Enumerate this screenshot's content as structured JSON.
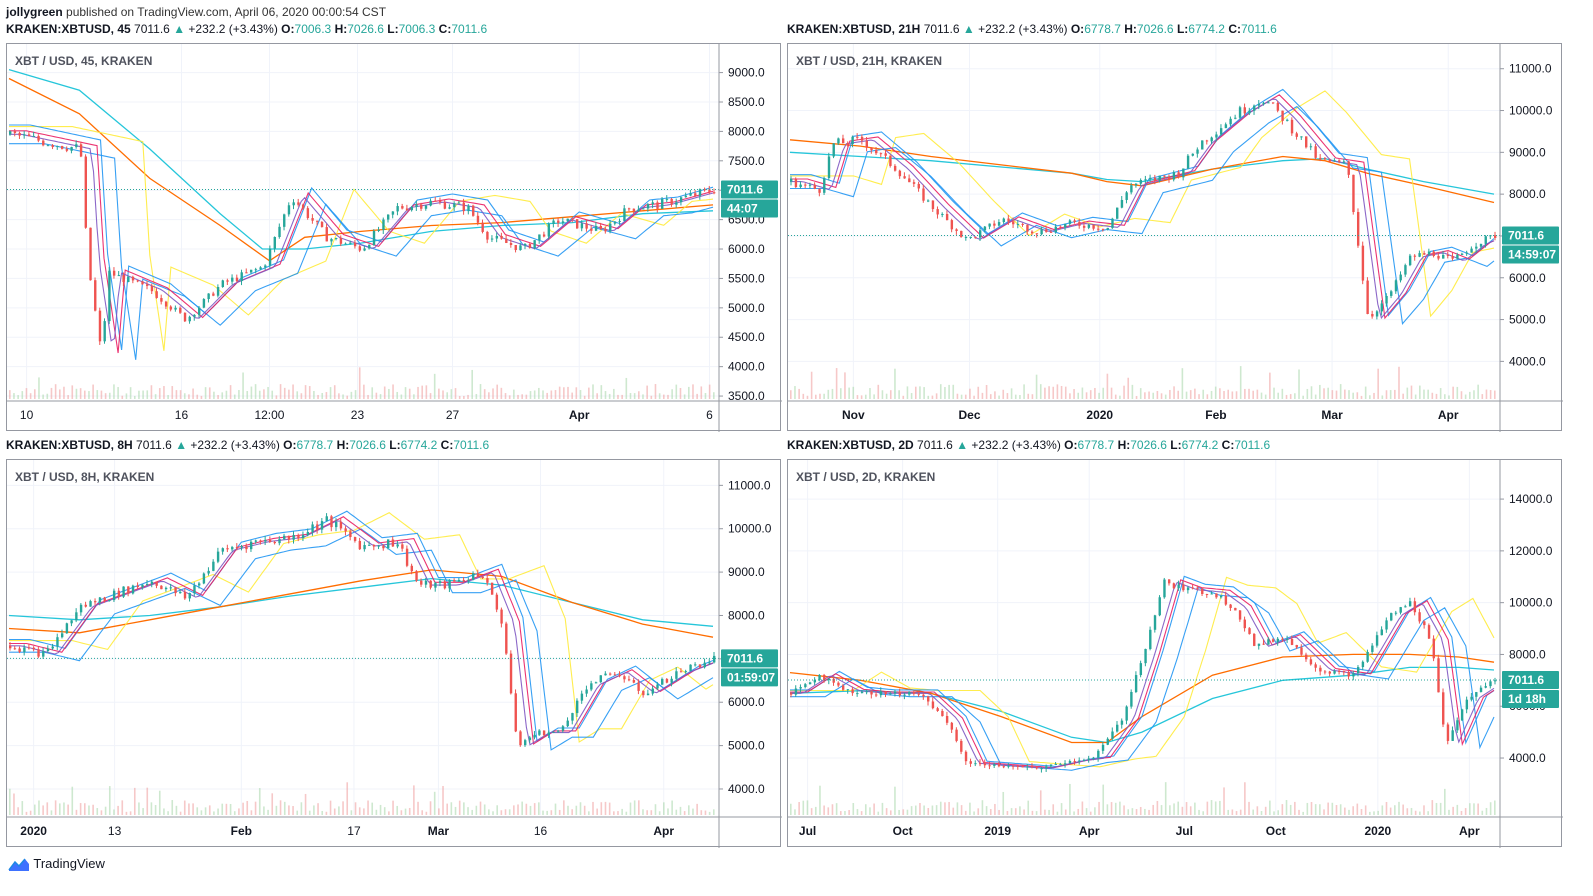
{
  "publisher": {
    "user": "jollygreen",
    "text": "published on TradingView.com, April 06, 2020 00:00:54 CST"
  },
  "footer": {
    "brand": "TradingView"
  },
  "colors": {
    "up": "#26a69a",
    "down": "#ef5350",
    "ema_blue": "#2196f3",
    "ema_purple": "#7e57c2",
    "ema_pink": "#e91e63",
    "ema_yellow": "#ffeb3b",
    "ma_orange": "#ff6d00",
    "ma_cyan": "#26c6da"
  },
  "panels": [
    {
      "header": {
        "symbol": "KRAKEN:XBTUSD, 45",
        "price": "7011.6",
        "change": "+232.2 (+3.43%)",
        "o": "7006.3",
        "h": "7026.6",
        "l": "7006.3",
        "c": "7011.6"
      },
      "label": "XBT / USD, 45, KRAKEN",
      "price_tag": "7011.6",
      "countdown": "44:07"
    },
    {
      "header": {
        "symbol": "KRAKEN:XBTUSD, 21H",
        "price": "7011.6",
        "change": "+232.2 (+3.43%)",
        "o": "6778.7",
        "h": "7026.6",
        "l": "6774.2",
        "c": "7011.6"
      },
      "label": "XBT / USD, 21H, KRAKEN",
      "price_tag": "7011.6",
      "countdown": "14:59:07"
    },
    {
      "header": {
        "symbol": "KRAKEN:XBTUSD, 8H",
        "price": "7011.6",
        "change": "+232.2 (+3.43%)",
        "o": "6778.7",
        "h": "7026.6",
        "l": "6774.2",
        "c": "7011.6"
      },
      "label": "XBT / USD, 8H, KRAKEN",
      "price_tag": "7011.6",
      "countdown": "01:59:07"
    },
    {
      "header": {
        "symbol": "KRAKEN:XBTUSD, 2D",
        "price": "7011.6",
        "change": "+232.2 (+3.43%)",
        "o": "6778.7",
        "h": "7026.6",
        "l": "6774.2",
        "c": "7011.6"
      },
      "label": "XBT / USD, 2D, KRAKEN",
      "price_tag": "7011.6",
      "countdown": "1d 18h"
    }
  ],
  "chart_data": [
    {
      "type": "candlestick",
      "ylim": [
        3450,
        9350
      ],
      "yticks": [
        "3500.0",
        "4000.0",
        "4500.0",
        "5000.0",
        "5500.0",
        "6000.0",
        "6500.0",
        "7000.0",
        "7500.0",
        "8000.0",
        "8500.0",
        "9000.0"
      ],
      "ytick_values": [
        3500,
        4000,
        4500,
        5000,
        5500,
        6000,
        6500,
        7000,
        7500,
        8000,
        8500,
        9000
      ],
      "xticks": [
        "10",
        "16",
        "12:00",
        "23",
        "27",
        "Apr",
        "6"
      ],
      "xtick_pos": [
        0.025,
        0.245,
        0.37,
        0.495,
        0.63,
        0.81,
        0.995
      ],
      "price_line": 7011.6,
      "close_path": [
        [
          0,
          7950
        ],
        [
          0.1,
          7700
        ],
        [
          0.11,
          5800
        ],
        [
          0.13,
          4200
        ],
        [
          0.14,
          5600
        ],
        [
          0.2,
          5300
        ],
        [
          0.25,
          4800
        ],
        [
          0.3,
          5400
        ],
        [
          0.36,
          5700
        ],
        [
          0.4,
          6900
        ],
        [
          0.45,
          6200
        ],
        [
          0.5,
          6000
        ],
        [
          0.55,
          6700
        ],
        [
          0.6,
          6800
        ],
        [
          0.65,
          6700
        ],
        [
          0.68,
          6200
        ],
        [
          0.73,
          6000
        ],
        [
          0.78,
          6500
        ],
        [
          0.84,
          6300
        ],
        [
          0.88,
          6700
        ],
        [
          0.92,
          6750
        ],
        [
          1,
          7011.6
        ]
      ],
      "ma_orange": [
        [
          0,
          8900
        ],
        [
          0.1,
          8300
        ],
        [
          0.2,
          7200
        ],
        [
          0.3,
          6400
        ],
        [
          0.37,
          5800
        ],
        [
          0.42,
          6200
        ],
        [
          0.5,
          6300
        ],
        [
          0.6,
          6400
        ],
        [
          0.7,
          6450
        ],
        [
          0.8,
          6550
        ],
        [
          0.9,
          6650
        ],
        [
          1,
          6750
        ]
      ],
      "ma_cyan": [
        [
          0,
          9050
        ],
        [
          0.1,
          8700
        ],
        [
          0.2,
          7700
        ],
        [
          0.3,
          6600
        ],
        [
          0.36,
          6000
        ],
        [
          0.42,
          6000
        ],
        [
          0.5,
          6100
        ],
        [
          0.6,
          6300
        ],
        [
          0.7,
          6400
        ],
        [
          0.8,
          6450
        ],
        [
          0.9,
          6600
        ],
        [
          1,
          6650
        ]
      ]
    },
    {
      "type": "candlestick",
      "ylim": [
        3100,
        11400
      ],
      "yticks": [
        "4000.0",
        "5000.0",
        "6000.0",
        "7000.0",
        "8000.0",
        "9000.0",
        "10000.0",
        "11000.0"
      ],
      "ytick_values": [
        4000,
        5000,
        6000,
        7000,
        8000,
        9000,
        10000,
        11000
      ],
      "xticks": [
        "Nov",
        "Dec",
        "2020",
        "Feb",
        "Mar",
        "Apr"
      ],
      "xtick_pos": [
        0.09,
        0.255,
        0.44,
        0.605,
        0.77,
        0.935
      ],
      "price_line": 7011.6,
      "close_path": [
        [
          0,
          8300
        ],
        [
          0.04,
          8100
        ],
        [
          0.06,
          9200
        ],
        [
          0.1,
          9300
        ],
        [
          0.15,
          8600
        ],
        [
          0.2,
          7700
        ],
        [
          0.25,
          6900
        ],
        [
          0.3,
          7400
        ],
        [
          0.35,
          7100
        ],
        [
          0.4,
          7300
        ],
        [
          0.45,
          7200
        ],
        [
          0.48,
          8200
        ],
        [
          0.55,
          8500
        ],
        [
          0.58,
          9200
        ],
        [
          0.63,
          9900
        ],
        [
          0.67,
          10300
        ],
        [
          0.7,
          9800
        ],
        [
          0.75,
          8800
        ],
        [
          0.79,
          8700
        ],
        [
          0.82,
          5000
        ],
        [
          0.85,
          5600
        ],
        [
          0.88,
          6500
        ],
        [
          0.91,
          6600
        ],
        [
          0.94,
          6400
        ],
        [
          0.97,
          6800
        ],
        [
          1,
          7011.6
        ]
      ],
      "ma_orange": [
        [
          0,
          9300
        ],
        [
          0.1,
          9150
        ],
        [
          0.2,
          8900
        ],
        [
          0.3,
          8700
        ],
        [
          0.4,
          8500
        ],
        [
          0.45,
          8300
        ],
        [
          0.5,
          8200
        ],
        [
          0.6,
          8600
        ],
        [
          0.7,
          8900
        ],
        [
          0.76,
          8800
        ],
        [
          0.82,
          8500
        ],
        [
          0.9,
          8200
        ],
        [
          1,
          7800
        ]
      ],
      "ma_cyan": [
        [
          0,
          9000
        ],
        [
          0.1,
          8900
        ],
        [
          0.2,
          8800
        ],
        [
          0.3,
          8650
        ],
        [
          0.4,
          8500
        ],
        [
          0.45,
          8350
        ],
        [
          0.5,
          8300
        ],
        [
          0.6,
          8600
        ],
        [
          0.7,
          8800
        ],
        [
          0.76,
          8850
        ],
        [
          0.82,
          8600
        ],
        [
          0.9,
          8300
        ],
        [
          1,
          8000
        ]
      ]
    },
    {
      "type": "candlestick",
      "ylim": [
        3400,
        11400
      ],
      "yticks": [
        "4000.0",
        "5000.0",
        "6000.0",
        "7000.0",
        "8000.0",
        "9000.0",
        "10000.0",
        "11000.0"
      ],
      "ytick_values": [
        4000,
        5000,
        6000,
        7000,
        8000,
        9000,
        10000,
        11000
      ],
      "xticks": [
        "2020",
        "13",
        "Feb",
        "17",
        "Mar",
        "16",
        "Apr"
      ],
      "xtick_pos": [
        0.035,
        0.15,
        0.33,
        0.49,
        0.61,
        0.755,
        0.93
      ],
      "price_line": 7011.6,
      "close_path": [
        [
          0,
          7300
        ],
        [
          0.05,
          7100
        ],
        [
          0.1,
          8200
        ],
        [
          0.15,
          8500
        ],
        [
          0.2,
          8800
        ],
        [
          0.25,
          8400
        ],
        [
          0.3,
          9500
        ],
        [
          0.35,
          9700
        ],
        [
          0.4,
          9800
        ],
        [
          0.45,
          10200
        ],
        [
          0.5,
          9600
        ],
        [
          0.55,
          9700
        ],
        [
          0.58,
          8700
        ],
        [
          0.62,
          8700
        ],
        [
          0.67,
          9000
        ],
        [
          0.7,
          7800
        ],
        [
          0.72,
          5000
        ],
        [
          0.75,
          5300
        ],
        [
          0.78,
          5300
        ],
        [
          0.82,
          6400
        ],
        [
          0.86,
          6700
        ],
        [
          0.9,
          6200
        ],
        [
          0.95,
          6700
        ],
        [
          1,
          7011.6
        ]
      ],
      "ma_orange": [
        [
          0,
          7700
        ],
        [
          0.1,
          7600
        ],
        [
          0.2,
          7900
        ],
        [
          0.3,
          8200
        ],
        [
          0.4,
          8500
        ],
        [
          0.5,
          8800
        ],
        [
          0.6,
          9050
        ],
        [
          0.7,
          8900
        ],
        [
          0.8,
          8300
        ],
        [
          0.9,
          7800
        ],
        [
          1,
          7500
        ]
      ],
      "ma_cyan": [
        [
          0,
          8000
        ],
        [
          0.1,
          7900
        ],
        [
          0.2,
          8000
        ],
        [
          0.3,
          8200
        ],
        [
          0.4,
          8450
        ],
        [
          0.5,
          8650
        ],
        [
          0.6,
          8850
        ],
        [
          0.7,
          8700
        ],
        [
          0.8,
          8300
        ],
        [
          0.9,
          7900
        ],
        [
          1,
          7750
        ]
      ]
    },
    {
      "type": "candlestick",
      "ylim": [
        1800,
        15200
      ],
      "yticks": [
        "4000.0",
        "6000.0",
        "8000.0",
        "10000.0",
        "12000.0",
        "14000.0"
      ],
      "ytick_values": [
        4000,
        6000,
        8000,
        10000,
        12000,
        14000
      ],
      "xticks": [
        "Jul",
        "Oct",
        "2019",
        "Apr",
        "Jul",
        "Oct",
        "2020",
        "Apr"
      ],
      "xtick_pos": [
        0.025,
        0.16,
        0.295,
        0.425,
        0.56,
        0.69,
        0.835,
        0.965
      ],
      "price_line": 7011.6,
      "close_path": [
        [
          0,
          6500
        ],
        [
          0.04,
          7200
        ],
        [
          0.08,
          6600
        ],
        [
          0.12,
          6500
        ],
        [
          0.18,
          6500
        ],
        [
          0.22,
          5500
        ],
        [
          0.25,
          3800
        ],
        [
          0.3,
          3700
        ],
        [
          0.35,
          3600
        ],
        [
          0.4,
          3900
        ],
        [
          0.43,
          4000
        ],
        [
          0.47,
          5500
        ],
        [
          0.5,
          8000
        ],
        [
          0.53,
          10800
        ],
        [
          0.56,
          10500
        ],
        [
          0.6,
          10400
        ],
        [
          0.63,
          9800
        ],
        [
          0.66,
          8300
        ],
        [
          0.7,
          8700
        ],
        [
          0.75,
          7400
        ],
        [
          0.8,
          7200
        ],
        [
          0.85,
          9500
        ],
        [
          0.88,
          10000
        ],
        [
          0.91,
          8500
        ],
        [
          0.93,
          4500
        ],
        [
          0.96,
          6300
        ],
        [
          1,
          7011.6
        ]
      ],
      "ma_orange": [
        [
          0,
          7300
        ],
        [
          0.1,
          7000
        ],
        [
          0.2,
          6500
        ],
        [
          0.3,
          5600
        ],
        [
          0.4,
          4600
        ],
        [
          0.45,
          4600
        ],
        [
          0.5,
          5600
        ],
        [
          0.6,
          7200
        ],
        [
          0.7,
          7900
        ],
        [
          0.8,
          8000
        ],
        [
          0.88,
          8000
        ],
        [
          0.95,
          7900
        ],
        [
          1,
          7700
        ]
      ],
      "ma_cyan": [
        [
          0,
          6500
        ],
        [
          0.1,
          6600
        ],
        [
          0.2,
          6500
        ],
        [
          0.3,
          5800
        ],
        [
          0.4,
          4800
        ],
        [
          0.45,
          4600
        ],
        [
          0.5,
          5000
        ],
        [
          0.6,
          6300
        ],
        [
          0.7,
          7000
        ],
        [
          0.8,
          7200
        ],
        [
          0.88,
          7500
        ],
        [
          0.95,
          7500
        ],
        [
          1,
          7400
        ]
      ]
    }
  ]
}
